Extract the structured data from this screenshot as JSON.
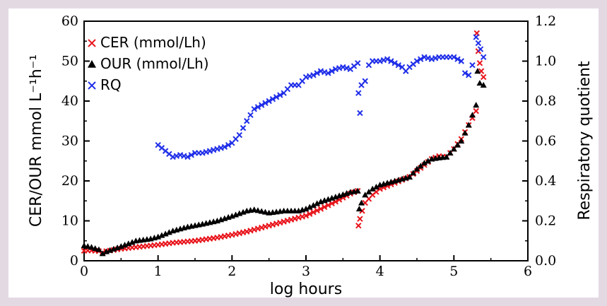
{
  "chart_data": {
    "type": "scatter",
    "xlabel": "log hours",
    "ylabel_left": "CER/OUR mmol L⁻¹h⁻¹",
    "ylabel_right": "Respiratory quotient",
    "xlim": [
      0,
      6
    ],
    "ylim_left": [
      0,
      60
    ],
    "ylim_right": [
      0,
      1.2
    ],
    "x_ticks": [
      "0",
      "1",
      "2",
      "3",
      "4",
      "5",
      "6"
    ],
    "y_left_ticks": [
      "0",
      "10",
      "20",
      "30",
      "40",
      "50",
      "60"
    ],
    "y_right_ticks": [
      "0.0",
      "0.2",
      "0.4",
      "0.6",
      "0.8",
      "1.0",
      "1.2"
    ],
    "legend_position": "top-left",
    "series": [
      {
        "name": "CER (mmol/Lh)",
        "axis": "left",
        "marker": "x",
        "color": "#e8141b",
        "points": [
          [
            0.0,
            2.5
          ],
          [
            0.1,
            2.6
          ],
          [
            0.2,
            2.4
          ],
          [
            0.25,
            2.0
          ],
          [
            0.3,
            2.4
          ],
          [
            0.5,
            3.0
          ],
          [
            0.8,
            3.6
          ],
          [
            1.0,
            4.0
          ],
          [
            1.2,
            4.5
          ],
          [
            1.5,
            5.0
          ],
          [
            1.8,
            5.8
          ],
          [
            2.0,
            6.5
          ],
          [
            2.2,
            7.3
          ],
          [
            2.5,
            8.8
          ],
          [
            2.8,
            10.3
          ],
          [
            3.0,
            11.3
          ],
          [
            3.2,
            13.0
          ],
          [
            3.4,
            14.8
          ],
          [
            3.6,
            16.8
          ],
          [
            3.7,
            17.5
          ],
          [
            3.71,
            8.8
          ],
          [
            3.73,
            10.5
          ],
          [
            3.76,
            12.5
          ],
          [
            3.8,
            14.5
          ],
          [
            3.9,
            16.5
          ],
          [
            4.0,
            18.0
          ],
          [
            4.2,
            19.5
          ],
          [
            4.4,
            21.0
          ],
          [
            4.5,
            22.5
          ],
          [
            4.6,
            24.0
          ],
          [
            4.7,
            25.5
          ],
          [
            4.8,
            26.2
          ],
          [
            4.9,
            26.0
          ],
          [
            5.0,
            28.0
          ],
          [
            5.1,
            30.5
          ],
          [
            5.2,
            34.0
          ],
          [
            5.3,
            37.5
          ],
          [
            5.31,
            57.0
          ],
          [
            5.33,
            52.5
          ],
          [
            5.35,
            49.5
          ],
          [
            5.37,
            47.5
          ],
          [
            5.4,
            46.0
          ]
        ]
      },
      {
        "name": "OUR (mmol/Lh)",
        "axis": "left",
        "marker": "triangle",
        "color": "#000000",
        "points": [
          [
            0.0,
            3.8
          ],
          [
            0.1,
            3.4
          ],
          [
            0.2,
            2.8
          ],
          [
            0.25,
            1.8
          ],
          [
            0.3,
            2.3
          ],
          [
            0.5,
            3.6
          ],
          [
            0.7,
            5.0
          ],
          [
            0.9,
            5.5
          ],
          [
            1.0,
            6.0
          ],
          [
            1.2,
            7.5
          ],
          [
            1.4,
            8.5
          ],
          [
            1.6,
            9.2
          ],
          [
            1.8,
            10.0
          ],
          [
            2.0,
            11.2
          ],
          [
            2.2,
            12.5
          ],
          [
            2.3,
            12.8
          ],
          [
            2.5,
            12.0
          ],
          [
            2.7,
            12.5
          ],
          [
            2.9,
            12.5
          ],
          [
            3.0,
            13.0
          ],
          [
            3.2,
            14.8
          ],
          [
            3.4,
            16.0
          ],
          [
            3.6,
            17.2
          ],
          [
            3.7,
            17.5
          ],
          [
            3.72,
            13.0
          ],
          [
            3.75,
            14.5
          ],
          [
            3.8,
            16.5
          ],
          [
            3.9,
            18.0
          ],
          [
            4.0,
            19.0
          ],
          [
            4.2,
            20.0
          ],
          [
            4.4,
            21.0
          ],
          [
            4.5,
            23.0
          ],
          [
            4.6,
            24.5
          ],
          [
            4.7,
            25.5
          ],
          [
            4.8,
            25.8
          ],
          [
            4.9,
            26.0
          ],
          [
            5.0,
            28.0
          ],
          [
            5.1,
            30.0
          ],
          [
            5.2,
            34.0
          ],
          [
            5.3,
            39.0
          ],
          [
            5.32,
            47.5
          ],
          [
            5.35,
            44.5
          ],
          [
            5.4,
            44.0
          ]
        ]
      },
      {
        "name": "RQ",
        "axis": "right",
        "marker": "x",
        "color": "#1f2ee8",
        "points": [
          [
            1.0,
            0.58
          ],
          [
            1.1,
            0.55
          ],
          [
            1.2,
            0.52
          ],
          [
            1.3,
            0.53
          ],
          [
            1.4,
            0.52
          ],
          [
            1.5,
            0.54
          ],
          [
            1.6,
            0.54
          ],
          [
            1.7,
            0.55
          ],
          [
            1.8,
            0.56
          ],
          [
            1.9,
            0.57
          ],
          [
            2.0,
            0.59
          ],
          [
            2.1,
            0.63
          ],
          [
            2.2,
            0.7
          ],
          [
            2.3,
            0.76
          ],
          [
            2.4,
            0.78
          ],
          [
            2.5,
            0.8
          ],
          [
            2.6,
            0.82
          ],
          [
            2.7,
            0.84
          ],
          [
            2.8,
            0.88
          ],
          [
            2.9,
            0.88
          ],
          [
            3.0,
            0.92
          ],
          [
            3.1,
            0.93
          ],
          [
            3.2,
            0.95
          ],
          [
            3.3,
            0.94
          ],
          [
            3.4,
            0.96
          ],
          [
            3.5,
            0.97
          ],
          [
            3.6,
            0.96
          ],
          [
            3.7,
            0.99
          ],
          [
            3.71,
            0.84
          ],
          [
            3.73,
            0.74
          ],
          [
            3.75,
            0.88
          ],
          [
            3.8,
            0.9
          ],
          [
            3.85,
            0.98
          ],
          [
            3.9,
            1.0
          ],
          [
            4.0,
            1.0
          ],
          [
            4.1,
            1.01
          ],
          [
            4.2,
            0.99
          ],
          [
            4.3,
            0.97
          ],
          [
            4.35,
            0.95
          ],
          [
            4.4,
            0.97
          ],
          [
            4.5,
            1.0
          ],
          [
            4.6,
            1.02
          ],
          [
            4.7,
            1.01
          ],
          [
            4.8,
            1.02
          ],
          [
            4.9,
            1.02
          ],
          [
            5.0,
            1.02
          ],
          [
            5.1,
            1.0
          ],
          [
            5.15,
            0.94
          ],
          [
            5.2,
            0.93
          ],
          [
            5.25,
            0.98
          ],
          [
            5.3,
            1.12
          ],
          [
            5.33,
            1.09
          ],
          [
            5.36,
            1.06
          ],
          [
            5.4,
            1.02
          ]
        ]
      }
    ]
  }
}
